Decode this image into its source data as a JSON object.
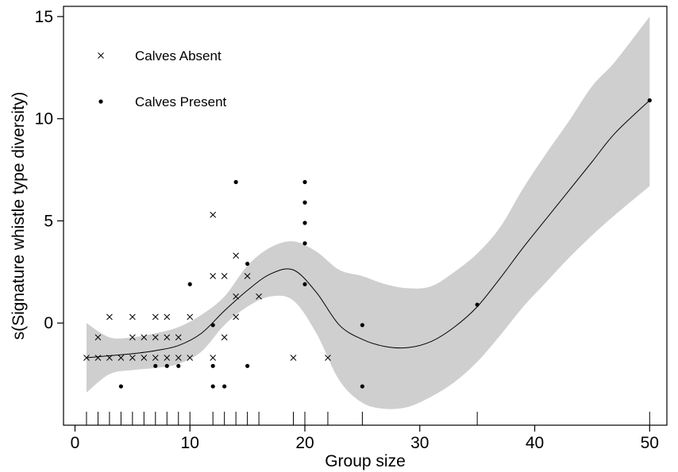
{
  "chart_data": {
    "type": "scatter",
    "title": "",
    "xlabel": "Group size",
    "ylabel": "s(Signature whistle type diversity)",
    "xlim": [
      -1,
      51.5
    ],
    "ylim": [
      -5,
      15.5
    ],
    "xticks": [
      0,
      10,
      20,
      30,
      40,
      50
    ],
    "yticks": [
      0,
      5,
      10,
      15
    ],
    "grid": false,
    "legend_position": "top-left",
    "legend": [
      {
        "label": "Calves Absent",
        "marker": "cross"
      },
      {
        "label": "Calves Present",
        "marker": "dot"
      }
    ],
    "series": [
      {
        "name": "Calves Absent",
        "marker": "cross",
        "points": [
          [
            1,
            -1.7
          ],
          [
            2,
            -1.7
          ],
          [
            2,
            -0.7
          ],
          [
            3,
            -1.7
          ],
          [
            3,
            0.3
          ],
          [
            4,
            -1.7
          ],
          [
            5,
            -1.7
          ],
          [
            5,
            -0.7
          ],
          [
            5,
            0.3
          ],
          [
            6,
            -1.7
          ],
          [
            6,
            -0.7
          ],
          [
            7,
            -1.7
          ],
          [
            7,
            -0.7
          ],
          [
            7,
            0.3
          ],
          [
            8,
            -1.7
          ],
          [
            8,
            -0.7
          ],
          [
            8,
            0.3
          ],
          [
            9,
            -1.7
          ],
          [
            9,
            -0.7
          ],
          [
            10,
            -1.7
          ],
          [
            10,
            0.3
          ],
          [
            12,
            -1.7
          ],
          [
            12,
            2.3
          ],
          [
            12,
            5.3
          ],
          [
            13,
            -0.7
          ],
          [
            13,
            2.3
          ],
          [
            14,
            0.3
          ],
          [
            14,
            1.3
          ],
          [
            14,
            3.3
          ],
          [
            15,
            2.3
          ],
          [
            16,
            1.3
          ],
          [
            19,
            -1.7
          ],
          [
            22,
            -1.7
          ]
        ]
      },
      {
        "name": "Calves Present",
        "marker": "dot",
        "points": [
          [
            4,
            -3.1
          ],
          [
            7,
            -2.1
          ],
          [
            8,
            -2.1
          ],
          [
            9,
            -2.1
          ],
          [
            10,
            1.9
          ],
          [
            12,
            -0.1
          ],
          [
            12,
            -2.1
          ],
          [
            12,
            -3.1
          ],
          [
            13,
            -3.1
          ],
          [
            14,
            6.9
          ],
          [
            15,
            2.9
          ],
          [
            15,
            -2.1
          ],
          [
            20,
            6.9
          ],
          [
            20,
            5.9
          ],
          [
            20,
            4.9
          ],
          [
            20,
            3.9
          ],
          [
            20,
            1.9
          ],
          [
            25,
            -0.1
          ],
          [
            25,
            -3.1
          ],
          [
            35,
            0.9
          ],
          [
            50,
            10.9
          ]
        ]
      },
      {
        "name": "Smooth fit",
        "type": "line",
        "x": [
          1,
          3,
          5,
          7,
          9,
          11,
          13,
          15,
          17,
          19,
          21,
          23,
          25,
          27,
          29,
          31,
          33,
          35,
          37,
          39,
          41,
          43,
          45,
          47,
          50
        ],
        "y": [
          -1.7,
          -1.6,
          -1.5,
          -1.35,
          -1.1,
          -0.5,
          0.6,
          1.6,
          2.4,
          2.6,
          1.5,
          -0.1,
          -0.8,
          -1.15,
          -1.2,
          -0.9,
          -0.2,
          0.8,
          2.2,
          3.7,
          5.1,
          6.5,
          7.9,
          9.3,
          10.9
        ]
      },
      {
        "name": "Confidence band",
        "type": "area",
        "x": [
          1,
          3,
          5,
          7,
          9,
          11,
          13,
          15,
          17,
          19,
          21,
          23,
          25,
          27,
          29,
          31,
          33,
          35,
          37,
          39,
          41,
          43,
          45,
          47,
          50
        ],
        "lower": [
          -3.4,
          -2.5,
          -2.3,
          -2.2,
          -2.0,
          -1.4,
          -0.1,
          0.8,
          1.3,
          1.1,
          -0.5,
          -2.8,
          -3.9,
          -4.2,
          -4.1,
          -3.6,
          -2.9,
          -1.9,
          -0.6,
          0.8,
          2.0,
          3.2,
          4.3,
          5.3,
          6.7
        ],
        "upper": [
          0.0,
          -0.7,
          -0.7,
          -0.5,
          -0.2,
          0.4,
          1.3,
          2.8,
          3.7,
          4.0,
          3.5,
          2.6,
          2.3,
          1.9,
          1.7,
          1.8,
          2.5,
          3.4,
          4.7,
          6.6,
          8.3,
          9.9,
          11.6,
          12.8,
          15.0
        ]
      }
    ],
    "rug_x": [
      1,
      2,
      3,
      4,
      5,
      6,
      7,
      8,
      9,
      10,
      12,
      13,
      14,
      15,
      16,
      19,
      20,
      22,
      25,
      35,
      50
    ]
  }
}
